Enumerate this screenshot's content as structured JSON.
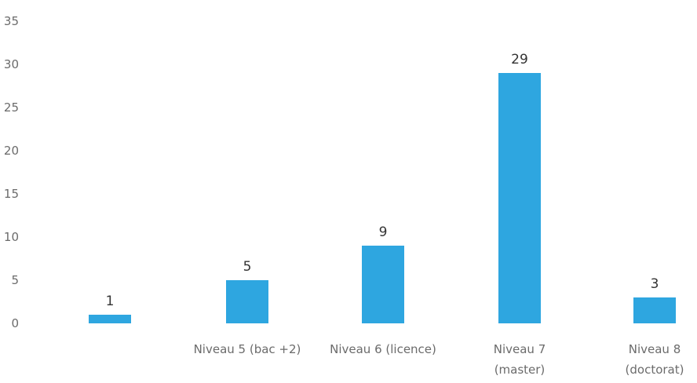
{
  "chart_data": {
    "type": "bar",
    "categories": [
      [
        ""
      ],
      [
        "Niveau 5 (bac +2)"
      ],
      [
        "Niveau 6 (licence)"
      ],
      [
        "Niveau 7",
        "(master)"
      ],
      [
        "Niveau 8",
        "(doctorat)"
      ]
    ],
    "values": [
      1,
      5,
      9,
      29,
      3
    ],
    "data_labels": [
      "1",
      "5",
      "9",
      "29",
      "3"
    ],
    "yticks": [
      "0",
      "5",
      "10",
      "15",
      "20",
      "25",
      "30",
      "35"
    ],
    "ylim": [
      0,
      35
    ],
    "grid": false,
    "legend": "none",
    "bar_color": "#2ea6e0"
  }
}
